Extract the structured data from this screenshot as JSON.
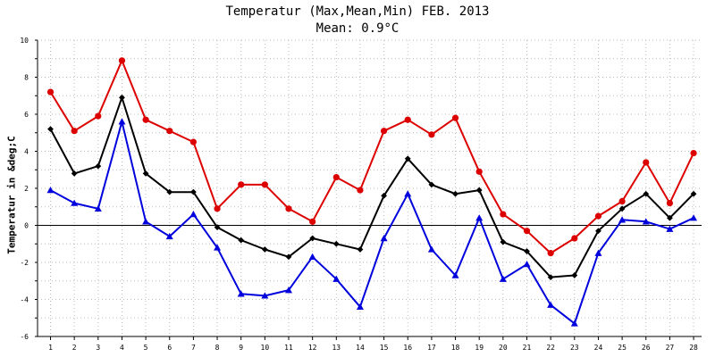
{
  "chart_data": {
    "type": "line",
    "title": "Temperatur (Max,Mean,Min) FEB. 2013",
    "subtitle": "Mean: 0.9°C",
    "xlabel": "",
    "ylabel": "Temperatur in &deg;C",
    "categories": [
      "1",
      "2",
      "3",
      "4",
      "5",
      "6",
      "7",
      "8",
      "9",
      "10",
      "11",
      "12",
      "13",
      "14",
      "15",
      "16",
      "17",
      "18",
      "19",
      "20",
      "21",
      "22",
      "23",
      "24",
      "25",
      "26",
      "27",
      "28"
    ],
    "ylim": [
      -6,
      10
    ],
    "yticks": [
      -6,
      -4,
      -2,
      0,
      2,
      4,
      6,
      8,
      10
    ],
    "grid": true,
    "legend": "none",
    "series": [
      {
        "color": "#dd0000",
        "marker": "circle",
        "values": [
          7.2,
          5.1,
          5.9,
          8.9,
          5.7,
          5.1,
          4.5,
          0.9,
          2.2,
          2.2,
          0.9,
          0.2,
          2.6,
          1.9,
          5.1,
          5.7,
          4.9,
          5.8,
          2.9,
          0.6,
          -0.3,
          -1.5,
          -0.7,
          0.5,
          1.3,
          3.4,
          1.2,
          3.9
        ]
      },
      {
        "color": "#000000",
        "marker": "diamond",
        "values": [
          5.2,
          2.8,
          3.2,
          6.9,
          2.8,
          1.8,
          1.8,
          -0.1,
          -0.8,
          -1.3,
          -1.7,
          -0.7,
          -1.0,
          -1.3,
          1.6,
          3.6,
          2.2,
          1.7,
          1.9,
          -0.9,
          -1.4,
          -2.8,
          -2.7,
          -0.3,
          0.9,
          1.7,
          0.4,
          1.7
        ]
      },
      {
        "color": "#0000dd",
        "marker": "triangle",
        "values": [
          1.9,
          1.2,
          0.9,
          5.6,
          0.2,
          -0.6,
          0.6,
          -1.2,
          -3.7,
          -3.8,
          -3.5,
          -1.7,
          -2.9,
          -4.4,
          -0.7,
          1.7,
          -1.3,
          -2.7,
          0.4,
          -2.9,
          -2.1,
          -4.3,
          -5.3,
          -1.5,
          0.3,
          0.2,
          -0.2,
          0.4
        ]
      }
    ]
  }
}
